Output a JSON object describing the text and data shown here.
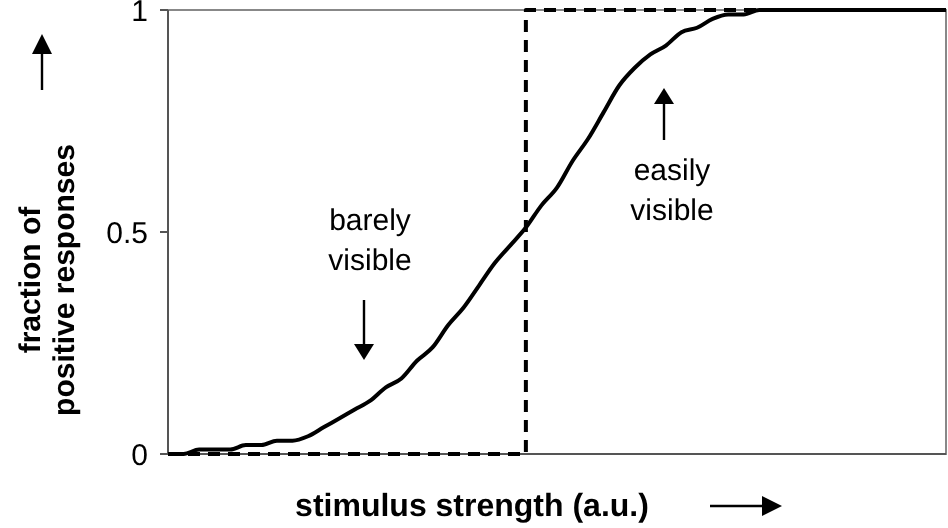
{
  "chart_data": {
    "type": "line",
    "xlabel": "stimulus strength (a.u.)",
    "ylabel": "fraction of positive responses",
    "categories": [
      null,
      null,
      null,
      null,
      null,
      null,
      null,
      null,
      null,
      null,
      null,
      null,
      null,
      null,
      null,
      null,
      null,
      null,
      null,
      null,
      null,
      null,
      null,
      null,
      null,
      null,
      null,
      null,
      null,
      null,
      null,
      null,
      null,
      null,
      null,
      null,
      null,
      null,
      null,
      null,
      null,
      null,
      null,
      null,
      null,
      null,
      null,
      null,
      null,
      null,
      null
    ],
    "ylim": [
      0,
      1
    ],
    "yticks": [
      0,
      0.5,
      1
    ],
    "grid": false,
    "tick_labels": "y",
    "series": [
      {
        "color": "#000000",
        "line_style": "solid",
        "values": [
          0,
          0,
          0.01,
          0.01,
          0.01,
          0.02,
          0.02,
          0.03,
          0.03,
          0.04,
          0.06,
          0.08,
          0.1,
          0.12,
          0.15,
          0.17,
          0.21,
          0.24,
          0.29,
          0.33,
          0.38,
          0.43,
          0.47,
          0.51,
          0.56,
          0.6,
          0.66,
          0.71,
          0.77,
          0.83,
          0.87,
          0.9,
          0.92,
          0.95,
          0.96,
          0.98,
          0.99,
          0.99,
          1,
          1,
          1,
          1,
          1,
          1,
          1,
          1,
          1,
          1,
          1,
          1,
          1
        ]
      },
      {
        "type": "step",
        "color": "#000000",
        "line_style": "dashed",
        "values": [
          0,
          0,
          0,
          0,
          0,
          0,
          0,
          0,
          0,
          0,
          0,
          0,
          0,
          0,
          0,
          0,
          0,
          0,
          0,
          0,
          0,
          0,
          0,
          1,
          1,
          1,
          1,
          1,
          1,
          1,
          1,
          1,
          1,
          1,
          1,
          1,
          1,
          1,
          1,
          1,
          1,
          1,
          1,
          1,
          1,
          1,
          1,
          1,
          1,
          1,
          1
        ]
      }
    ],
    "annotations": [
      "barely visible",
      "easily visible"
    ]
  }
}
